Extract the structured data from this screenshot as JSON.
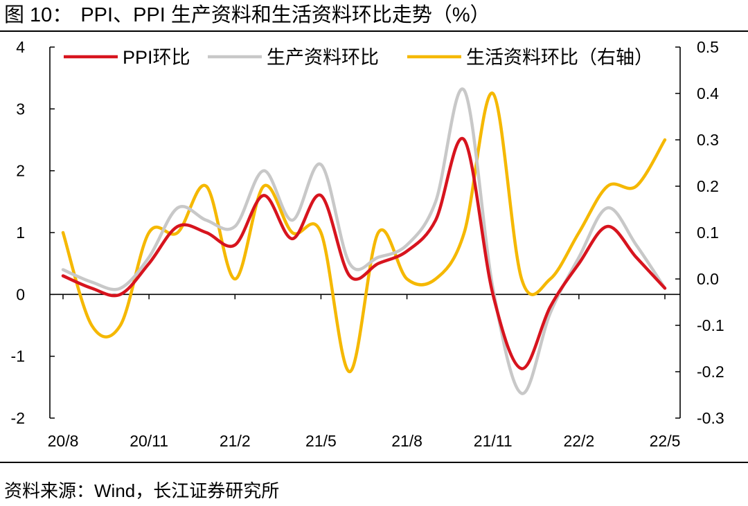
{
  "title": {
    "figure_label": "图 10：",
    "text": "PPI、PPI 生产资料和生活资料环比走势（%）"
  },
  "source": "资料来源：Wind，长江证券研究所",
  "chart_data": {
    "type": "line",
    "title": "PPI、PPI 生产资料和生活资料环比走势（%）",
    "x": [
      "20/8",
      "20/9",
      "20/10",
      "20/11",
      "20/12",
      "21/1",
      "21/2",
      "21/3",
      "21/4",
      "21/5",
      "21/6",
      "21/7",
      "21/8",
      "21/9",
      "21/10",
      "21/11",
      "21/12",
      "22/1",
      "22/2",
      "22/3",
      "22/4",
      "22/5"
    ],
    "x_tick_labels": [
      "20/8",
      "20/11",
      "21/2",
      "21/5",
      "21/8",
      "21/11",
      "22/2",
      "22/5"
    ],
    "y_left": {
      "range": [
        -2,
        4
      ],
      "ticks": [
        "-2",
        "-1",
        "0",
        "1",
        "2",
        "3",
        "4"
      ]
    },
    "y_right": {
      "range": [
        -0.3,
        0.5
      ],
      "ticks": [
        "-0.3",
        "-0.2",
        "-0.1",
        "0.0",
        "0.1",
        "0.2",
        "0.3",
        "0.4",
        "0.5"
      ]
    },
    "legend_position": "top",
    "grid": false,
    "series": [
      {
        "name": "PPI环比",
        "axis": "left",
        "color": "#d7141e",
        "values": [
          0.3,
          0.1,
          0.0,
          0.5,
          1.1,
          1.0,
          0.8,
          1.6,
          0.9,
          1.6,
          0.3,
          0.5,
          0.7,
          1.2,
          2.5,
          0.0,
          -1.2,
          -0.2,
          0.5,
          1.1,
          0.6,
          0.1
        ]
      },
      {
        "name": "生产资料环比",
        "axis": "left",
        "color": "#c8c8c8",
        "values": [
          0.4,
          0.2,
          0.1,
          0.6,
          1.4,
          1.2,
          1.1,
          2.0,
          1.2,
          2.1,
          0.5,
          0.6,
          0.8,
          1.5,
          3.3,
          0.1,
          -1.6,
          -0.3,
          0.6,
          1.4,
          0.8,
          0.1
        ]
      },
      {
        "name": "生活资料环比（右轴）",
        "axis": "right",
        "color": "#f5b800",
        "values": [
          0.1,
          -0.1,
          -0.1,
          0.1,
          0.1,
          0.2,
          0.0,
          0.2,
          0.1,
          0.1,
          -0.2,
          0.1,
          0.0,
          0.0,
          0.1,
          0.4,
          0.0,
          0.0,
          0.1,
          0.2,
          0.2,
          0.3
        ]
      }
    ]
  }
}
